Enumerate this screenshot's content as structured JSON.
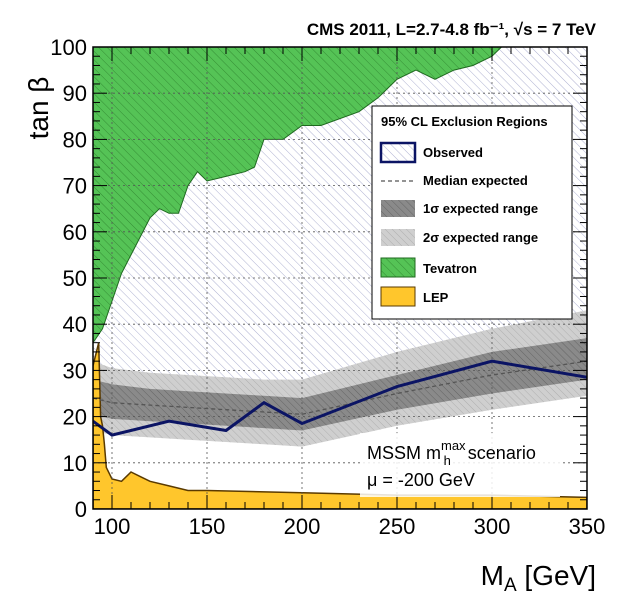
{
  "chart_data": {
    "type": "area",
    "title": "CMS 2011, L=2.7-4.8 fb⁻¹, √s = 7 TeV",
    "xlabel": "M_A [GeV]",
    "ylabel": "tan β",
    "xlim": [
      90,
      350
    ],
    "ylim": [
      0,
      100
    ],
    "x_ticks": [
      100,
      150,
      200,
      250,
      300,
      350
    ],
    "y_ticks": [
      0,
      10,
      20,
      30,
      40,
      50,
      60,
      70,
      80,
      90,
      100
    ],
    "grid": true,
    "legend_position": "top-right",
    "legend_title": "95% CL Exclusion Regions",
    "legend": [
      {
        "key": "observed",
        "label": "Observed"
      },
      {
        "key": "median",
        "label": "Median expected"
      },
      {
        "key": "band1",
        "label": "1σ expected range"
      },
      {
        "key": "band2",
        "label": "2σ expected range"
      },
      {
        "key": "tevatron",
        "label": "Tevatron"
      },
      {
        "key": "lep",
        "label": "LEP"
      }
    ],
    "annotations": {
      "scenario_text": "MSSM m",
      "scenario_sub": "h",
      "scenario_sup": "max",
      "scenario_suffix": " scenario",
      "mu_text": "μ = -200 GeV"
    },
    "series": [
      {
        "name": "Observed",
        "x": [
          90,
          100,
          130,
          160,
          180,
          200,
          250,
          300,
          350
        ],
        "y": [
          19,
          16,
          19,
          17,
          23,
          18.5,
          26.5,
          32,
          28.5
        ]
      },
      {
        "name": "Median expected",
        "x": [
          90,
          100,
          120,
          140,
          160,
          180,
          200,
          250,
          300,
          350
        ],
        "y": [
          24,
          23,
          22.5,
          22,
          21.5,
          21,
          20.5,
          25,
          29,
          32
        ]
      },
      {
        "name": "1σ expected range",
        "x": [
          90,
          100,
          120,
          140,
          160,
          180,
          200,
          250,
          300,
          350
        ],
        "upper": [
          28,
          27,
          26,
          25.5,
          25,
          24.5,
          24,
          29,
          34,
          37
        ],
        "lower": [
          20.5,
          19.5,
          19,
          18.5,
          18,
          17.5,
          17,
          21.5,
          25,
          28
        ]
      },
      {
        "name": "2σ expected range",
        "x": [
          90,
          100,
          120,
          140,
          160,
          180,
          200,
          250,
          300,
          350
        ],
        "upper": [
          32,
          30.5,
          29.5,
          29,
          28.5,
          28,
          28,
          34,
          39,
          43
        ]
      },
      {
        "name": "Tevatron",
        "x": [
          90,
          95,
          100,
          105,
          110,
          115,
          120,
          125,
          130,
          135,
          140,
          145,
          150,
          160,
          170,
          175,
          180,
          190,
          200,
          210,
          230,
          240,
          250,
          260,
          270,
          280,
          290,
          300,
          305
        ],
        "y": [
          36,
          39,
          45,
          51,
          55,
          59,
          63,
          65,
          64,
          64,
          70,
          73,
          71,
          72,
          73,
          74,
          80,
          80,
          83,
          83,
          86,
          89,
          93,
          95,
          93,
          95,
          96,
          98,
          100
        ]
      },
      {
        "name": "LEP",
        "x": [
          90,
          93,
          94,
          95,
          96,
          97,
          100,
          105,
          110,
          115,
          120,
          130,
          140,
          150,
          200,
          250,
          300,
          350
        ],
        "y": [
          31,
          36,
          20,
          18,
          14,
          9,
          6.5,
          6,
          8,
          7,
          6,
          5,
          4,
          4,
          3.5,
          3,
          3,
          2.5
        ]
      }
    ]
  }
}
